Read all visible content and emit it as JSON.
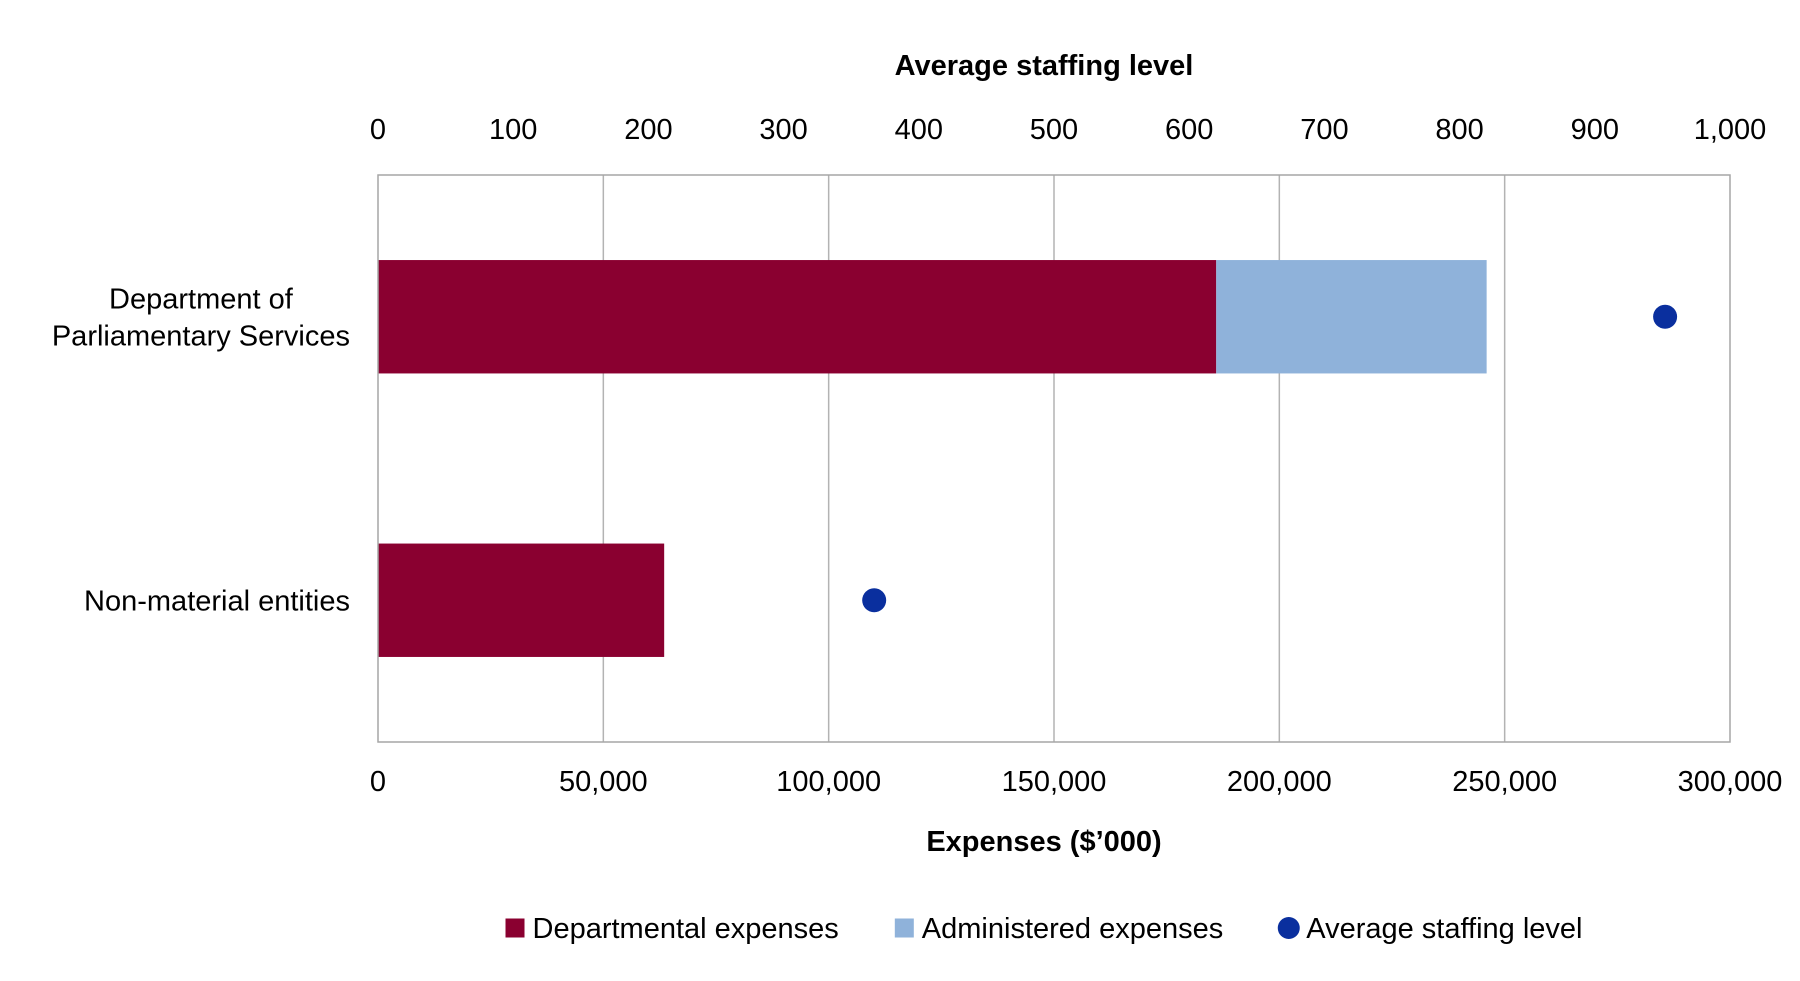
{
  "chart_data": {
    "type": "bar",
    "orientation": "horizontal",
    "stacked": true,
    "categories": [
      "Department of Parliamentary Services",
      "Non-material entities"
    ],
    "category_label_lines": [
      [
        "Department of",
        "Parliamentary Services"
      ],
      [
        "Non-material entities"
      ]
    ],
    "series": [
      {
        "name": "Departmental expenses",
        "values": [
          186000,
          63500
        ],
        "color": "#8a0030",
        "axis": "bottom"
      },
      {
        "name": "Administered expenses",
        "values": [
          60000,
          0
        ],
        "color": "#8fb2da",
        "axis": "bottom"
      },
      {
        "name": "Average staffing level",
        "values": [
          952,
          367
        ],
        "color": "#0a2f9e",
        "axis": "top",
        "marker": "circle"
      }
    ],
    "x_bottom": {
      "label": "Expenses ($’000)",
      "range": [
        0,
        300000
      ],
      "ticks": [
        0,
        50000,
        100000,
        150000,
        200000,
        250000,
        300000
      ],
      "tick_labels": [
        "0",
        "50,000",
        "100,000",
        "150,000",
        "200,000",
        "250,000",
        "300,000"
      ]
    },
    "x_top": {
      "label": "Average staffing level",
      "range": [
        0,
        1000
      ],
      "ticks": [
        0,
        100,
        200,
        300,
        400,
        500,
        600,
        700,
        800,
        900,
        1000
      ],
      "tick_labels": [
        "0",
        "100",
        "200",
        "300",
        "400",
        "500",
        "600",
        "700",
        "800",
        "900",
        "1,000"
      ]
    },
    "gridlines": "vertical",
    "legend_position": "bottom"
  }
}
